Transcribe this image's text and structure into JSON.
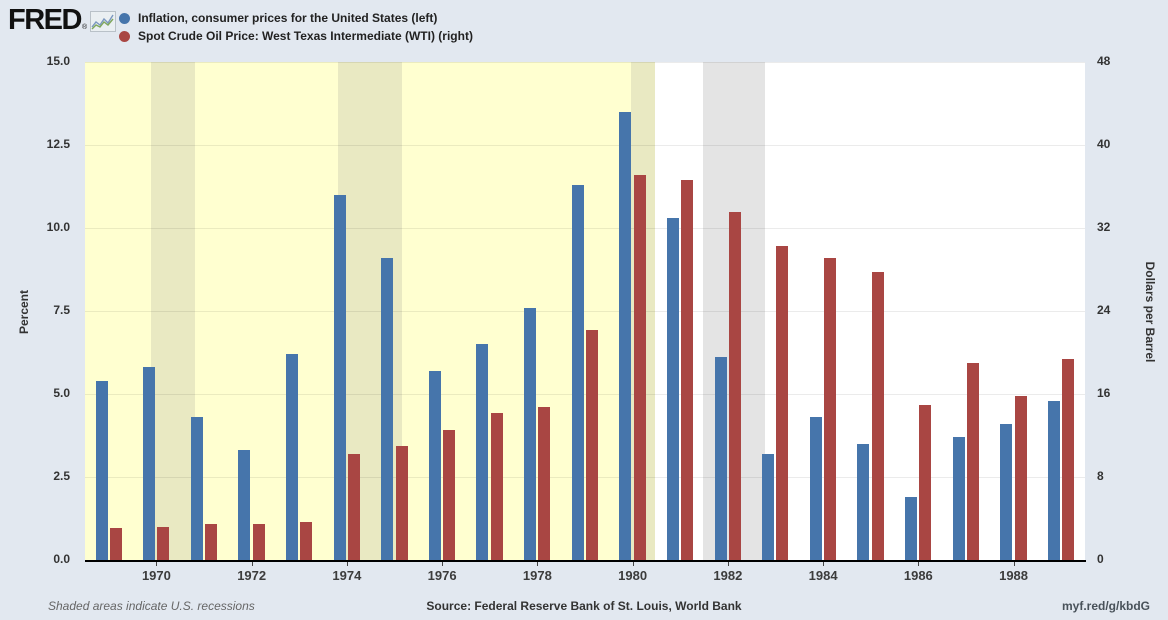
{
  "header": {
    "logo": "FRED",
    "logo_registered": "®",
    "legend": [
      {
        "label": "Inflation, consumer prices for the United States (left)",
        "color": "#4675AB"
      },
      {
        "label": "Spot Crude Oil Price: West Texas Intermediate (WTI) (right)",
        "color": "#A94643"
      }
    ]
  },
  "chart_data": {
    "type": "bar",
    "categories": [
      1969,
      1970,
      1971,
      1972,
      1973,
      1974,
      1975,
      1976,
      1977,
      1978,
      1979,
      1980,
      1981,
      1982,
      1983,
      1984,
      1985,
      1986,
      1987,
      1988,
      1989
    ],
    "series": [
      {
        "name": "Inflation, consumer prices for the United States (left)",
        "axis": "left",
        "color": "#4675AB",
        "values": [
          5.4,
          5.8,
          4.3,
          3.3,
          6.2,
          11.0,
          9.1,
          5.7,
          6.5,
          7.6,
          11.3,
          13.5,
          10.3,
          6.1,
          3.2,
          4.3,
          3.5,
          1.9,
          3.7,
          4.1,
          4.8
        ]
      },
      {
        "name": "Spot Crude Oil Price: West Texas Intermediate (WTI) (right)",
        "axis": "right",
        "color": "#A94643",
        "values": [
          3.1,
          3.2,
          3.5,
          3.5,
          3.7,
          10.2,
          11.0,
          12.5,
          14.2,
          14.7,
          22.2,
          37.1,
          36.6,
          33.5,
          30.3,
          29.1,
          27.8,
          14.9,
          19.0,
          15.8,
          19.4
        ]
      }
    ],
    "left_axis": {
      "label": "Percent",
      "min": 0,
      "max": 15,
      "ticks": [
        "0.0",
        "2.5",
        "5.0",
        "7.5",
        "10.0",
        "12.5",
        "15.0"
      ]
    },
    "right_axis": {
      "label": "Dollars per Barrel",
      "min": 0,
      "max": 48,
      "ticks": [
        "0",
        "8",
        "16",
        "24",
        "32",
        "40",
        "48"
      ]
    },
    "x_axis": {
      "tick_labels": [
        "1970",
        "1972",
        "1974",
        "1976",
        "1978",
        "1980",
        "1982",
        "1984",
        "1986",
        "1988"
      ]
    },
    "grid": "horizontal",
    "legend_position": "top-left",
    "highlight_region": {
      "start_frac": 0.0,
      "end_frac": 0.57,
      "color": "#FFFFD0"
    },
    "recession_bands": [
      {
        "start_frac": 0.066,
        "end_frac": 0.11,
        "color": "#E9E9C2"
      },
      {
        "start_frac": 0.2533,
        "end_frac": 0.3167,
        "color": "#E9E9C2"
      },
      {
        "start_frac": 0.5457,
        "end_frac": 0.57,
        "color": "#E9E9C2"
      },
      {
        "start_frac": 0.6183,
        "end_frac": 0.68,
        "color": "#E4E4E4"
      }
    ],
    "colors": {
      "page_background": "#E2E8F0",
      "plot_background": "#FFFFFF",
      "gridline": "rgba(0,0,0,0.08)",
      "axis_line": "#000000"
    }
  },
  "footer": {
    "note": "Shaded areas indicate U.S. recessions",
    "source": "Source: Federal Reserve Bank of St. Louis, World Bank",
    "link": "myf.red/g/kbdG"
  }
}
